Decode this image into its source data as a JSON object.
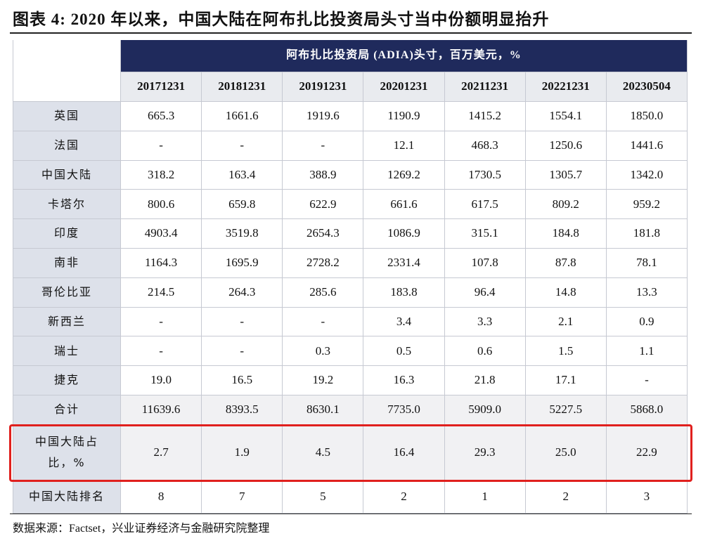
{
  "header": {
    "title": "图表 4: 2020 年以来，中国大陆在阿布扎比投资局头寸当中份额明显抬升"
  },
  "table": {
    "span_header": "阿布扎比投资局 (ADIA)头寸，百万美元，%",
    "columns": [
      "20171231",
      "20181231",
      "20191231",
      "20201231",
      "20211231",
      "20221231",
      "20230504"
    ],
    "rows": [
      {
        "label": "英国",
        "cells": [
          "665.3",
          "1661.6",
          "1919.6",
          "1190.9",
          "1415.2",
          "1554.1",
          "1850.0"
        ]
      },
      {
        "label": "法国",
        "cells": [
          "-",
          "-",
          "-",
          "12.1",
          "468.3",
          "1250.6",
          "1441.6"
        ]
      },
      {
        "label": "中国大陆",
        "cells": [
          "318.2",
          "163.4",
          "388.9",
          "1269.2",
          "1730.5",
          "1305.7",
          "1342.0"
        ]
      },
      {
        "label": "卡塔尔",
        "cells": [
          "800.6",
          "659.8",
          "622.9",
          "661.6",
          "617.5",
          "809.2",
          "959.2"
        ]
      },
      {
        "label": "印度",
        "cells": [
          "4903.4",
          "3519.8",
          "2654.3",
          "1086.9",
          "315.1",
          "184.8",
          "181.8"
        ]
      },
      {
        "label": "南非",
        "cells": [
          "1164.3",
          "1695.9",
          "2728.2",
          "2331.4",
          "107.8",
          "87.8",
          "78.1"
        ]
      },
      {
        "label": "哥伦比亚",
        "cells": [
          "214.5",
          "264.3",
          "285.6",
          "183.8",
          "96.4",
          "14.8",
          "13.3"
        ]
      },
      {
        "label": "新西兰",
        "cells": [
          "-",
          "-",
          "-",
          "3.4",
          "3.3",
          "2.1",
          "0.9"
        ]
      },
      {
        "label": "瑞士",
        "cells": [
          "-",
          "-",
          "0.3",
          "0.5",
          "0.6",
          "1.5",
          "1.1"
        ]
      },
      {
        "label": "捷克",
        "cells": [
          "19.0",
          "16.5",
          "19.2",
          "16.3",
          "21.8",
          "17.1",
          "-"
        ]
      },
      {
        "label": "合计",
        "cells": [
          "11639.6",
          "8393.5",
          "8630.1",
          "7735.0",
          "5909.0",
          "5227.5",
          "5868.0"
        ]
      },
      {
        "label": "中国大陆占比，%",
        "cells": [
          "2.7",
          "1.9",
          "4.5",
          "16.4",
          "29.3",
          "25.0",
          "22.9"
        ]
      },
      {
        "label": "中国大陆排名",
        "cells": [
          "8",
          "7",
          "5",
          "2",
          "1",
          "2",
          "3"
        ]
      }
    ]
  },
  "footer": {
    "source": "数据来源：Factset，兴业证券经济与金融研究院整理"
  }
}
